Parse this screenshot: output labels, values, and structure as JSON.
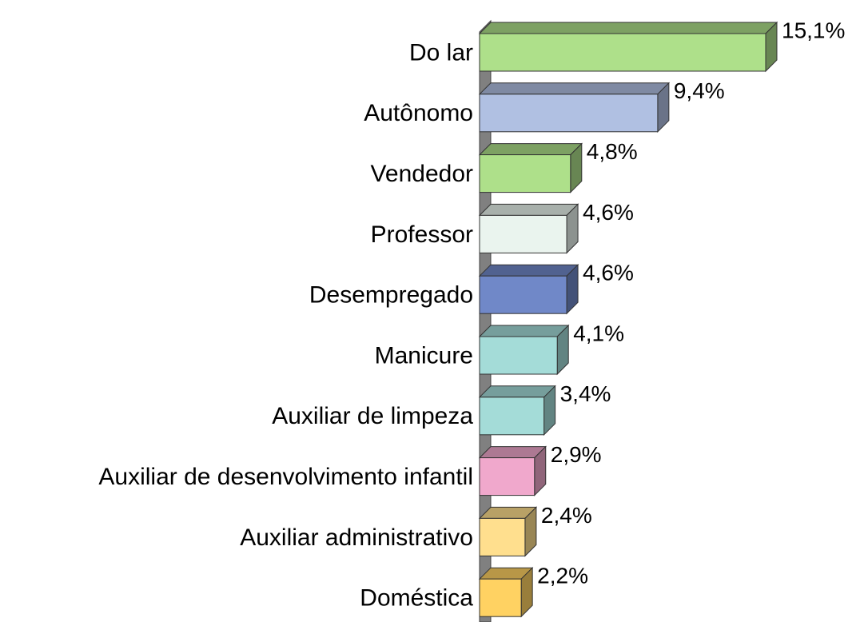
{
  "chart_data": {
    "type": "bar",
    "orientation": "horizontal",
    "categories": [
      "Do lar",
      "Autônomo",
      "Vendedor",
      "Professor",
      "Desempregado",
      "Manicure",
      "Auxiliar de limpeza",
      "Auxiliar de desenvolvimento infantil",
      "Auxiliar administrativo",
      "Doméstica"
    ],
    "values": [
      15.1,
      9.4,
      4.8,
      4.6,
      4.6,
      4.1,
      3.4,
      2.9,
      2.4,
      2.2
    ],
    "value_labels": [
      "15,1%",
      "9,4%",
      "4,8%",
      "4,6%",
      "4,6%",
      "4,1%",
      "3,4%",
      "2,9%",
      "2,4%",
      "2,2%"
    ],
    "colors": [
      "#aee08a",
      "#b0c0e2",
      "#aee08a",
      "#eaf4ee",
      "#7088c8",
      "#a4dcd8",
      "#a4dcd8",
      "#f0a8cc",
      "#ffdf8e",
      "#ffd262"
    ]
  }
}
